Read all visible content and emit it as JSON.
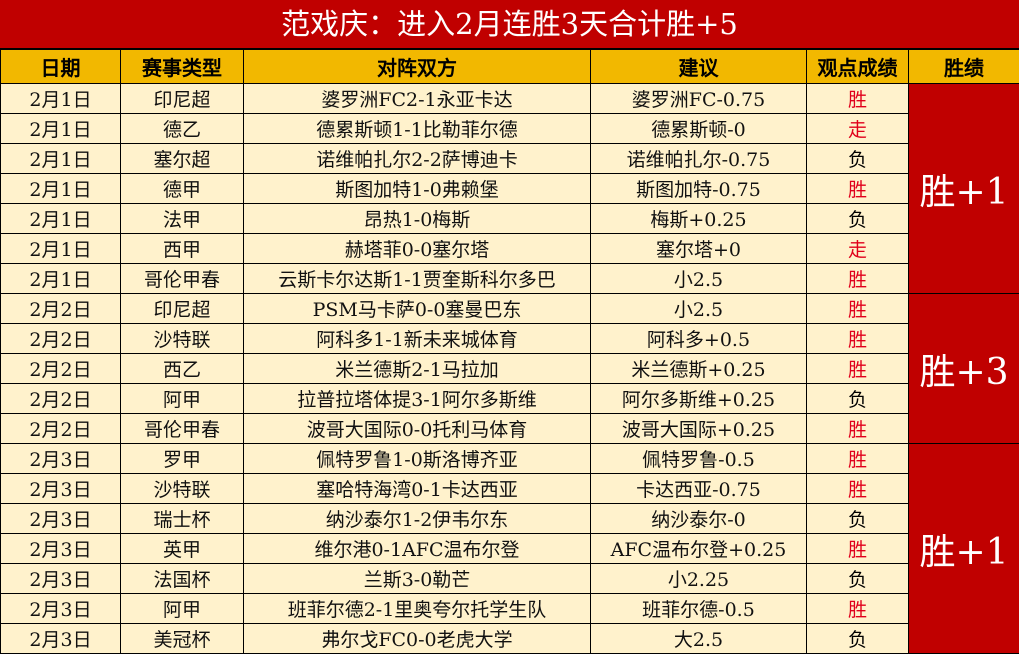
{
  "title": "范戏庆：进入2月连胜3天合计胜+5",
  "headers": {
    "date": "日期",
    "type": "赛事类型",
    "match": "对阵双方",
    "tip": "建议",
    "result": "观点成绩",
    "summary": "胜绩"
  },
  "colors": {
    "title_bg": "#C00000",
    "header_bg": "#F2B800",
    "row_bg": "#FFF2CC",
    "win": "#E0001B",
    "loss": "#000000"
  },
  "rows": [
    {
      "date": "2月1日",
      "type": "印尼超",
      "match": "婆罗洲FC2-1永亚卡达",
      "tip": "婆罗洲FC-0.75",
      "result": "胜"
    },
    {
      "date": "2月1日",
      "type": "德乙",
      "match": "德累斯顿1-1比勒菲尔德",
      "tip": "德累斯顿-0",
      "result": "走"
    },
    {
      "date": "2月1日",
      "type": "塞尔超",
      "match": "诺维帕扎尔2-2萨博迪卡",
      "tip": "诺维帕扎尔-0.75",
      "result": "负"
    },
    {
      "date": "2月1日",
      "type": "德甲",
      "match": "斯图加特1-0弗赖堡",
      "tip": "斯图加特-0.75",
      "result": "胜"
    },
    {
      "date": "2月1日",
      "type": "法甲",
      "match": "昂热1-0梅斯",
      "tip": "梅斯+0.25",
      "result": "负"
    },
    {
      "date": "2月1日",
      "type": "西甲",
      "match": "赫塔菲0-0塞尔塔",
      "tip": "塞尔塔+0",
      "result": "走"
    },
    {
      "date": "2月1日",
      "type": "哥伦甲春",
      "match": "云斯卡尔达斯1-1贾奎斯科尔多巴",
      "tip": "小2.5",
      "result": "胜"
    },
    {
      "date": "2月2日",
      "type": "印尼超",
      "match": "PSM马卡萨0-0塞曼巴东",
      "tip": "小2.5",
      "result": "胜"
    },
    {
      "date": "2月2日",
      "type": "沙特联",
      "match": "阿科多1-1新未来城体育",
      "tip": "阿科多+0.5",
      "result": "胜"
    },
    {
      "date": "2月2日",
      "type": "西乙",
      "match": "米兰德斯2-1马拉加",
      "tip": "米兰德斯+0.25",
      "result": "胜"
    },
    {
      "date": "2月2日",
      "type": "阿甲",
      "match": "拉普拉塔体提3-1阿尔多斯维",
      "tip": "阿尔多斯维+0.25",
      "result": "负"
    },
    {
      "date": "2月2日",
      "type": "哥伦甲春",
      "match": "波哥大国际0-0托利马体育",
      "tip": "波哥大国际+0.25",
      "result": "胜"
    },
    {
      "date": "2月3日",
      "type": "罗甲",
      "match": "佩特罗鲁1-0斯洛博齐亚",
      "tip": "佩特罗鲁-0.5",
      "result": "胜"
    },
    {
      "date": "2月3日",
      "type": "沙特联",
      "match": "塞哈特海湾0-1卡达西亚",
      "tip": "卡达西亚-0.75",
      "result": "胜"
    },
    {
      "date": "2月3日",
      "type": "瑞士杯",
      "match": "纳沙泰尔1-2伊韦尔东",
      "tip": "纳沙泰尔-0",
      "result": "负"
    },
    {
      "date": "2月3日",
      "type": "英甲",
      "match": "维尔港0-1AFC温布尔登",
      "tip": "AFC温布尔登+0.25",
      "result": "胜"
    },
    {
      "date": "2月3日",
      "type": "法国杯",
      "match": "兰斯3-0勒芒",
      "tip": "小2.25",
      "result": "负"
    },
    {
      "date": "2月3日",
      "type": "阿甲",
      "match": "班菲尔德2-1里奥夸尔托学生队",
      "tip": "班菲尔德-0.5",
      "result": "胜"
    },
    {
      "date": "2月3日",
      "type": "美冠杯",
      "match": "弗尔戈FC0-0老虎大学",
      "tip": "大2.5",
      "result": "负"
    }
  ],
  "summaries": [
    {
      "label": "胜+1",
      "rows": 7
    },
    {
      "label": "胜+3",
      "rows": 5
    },
    {
      "label": "胜+1",
      "rows": 7
    }
  ]
}
